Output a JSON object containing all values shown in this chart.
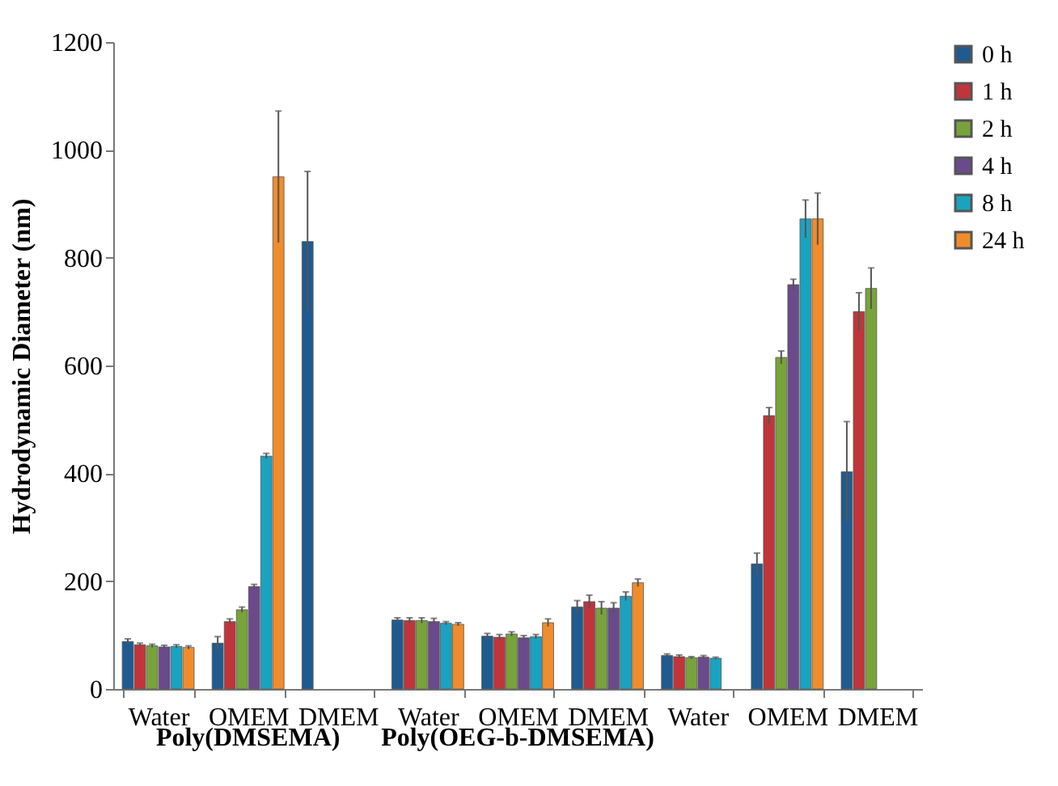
{
  "chart_data": {
    "type": "bar",
    "ylabel": "Hydrodynamic Diameter (nm)",
    "categories": [
      "Water",
      "OMEM",
      "DMEM",
      "Water",
      "OMEM",
      "DMEM",
      "Water",
      "OMEM",
      "DMEM"
    ],
    "ylim": [
      0,
      1200
    ],
    "yticks": [
      0,
      200,
      400,
      600,
      800,
      1000,
      1200
    ],
    "grid": false,
    "legend": "right",
    "annotations": [
      "Poly(DMSEMA)",
      "Poly(OEG-b-DMSEMA)"
    ],
    "series": [
      {
        "name": "0 h",
        "color": "#1f5b8f",
        "values": [
          88,
          85,
          830,
          128,
          98,
          152,
          62,
          232,
          403
        ],
        "errors": [
          5,
          12,
          130,
          4,
          5,
          12,
          3,
          20,
          93
        ]
      },
      {
        "name": "1 h",
        "color": "#c0353a",
        "values": [
          82,
          125,
          null,
          127,
          96,
          162,
          60,
          507,
          700
        ],
        "errors": [
          3,
          5,
          null,
          5,
          5,
          12,
          3,
          15,
          35
        ]
      },
      {
        "name": "2 h",
        "color": "#78a33a",
        "values": [
          80,
          147,
          null,
          127,
          102,
          150,
          58,
          615,
          743
        ],
        "errors": [
          3,
          5,
          null,
          5,
          4,
          12,
          2,
          12,
          38
        ]
      },
      {
        "name": "4 h",
        "color": "#6b4a8c",
        "values": [
          78,
          190,
          null,
          125,
          95,
          150,
          59,
          750,
          null
        ],
        "errors": [
          3,
          4,
          null,
          6,
          4,
          10,
          3,
          10,
          null
        ]
      },
      {
        "name": "8 h",
        "color": "#1aa3c0",
        "values": [
          79,
          432,
          null,
          122,
          97,
          172,
          57,
          872,
          null
        ],
        "errors": [
          3,
          5,
          null,
          3,
          4,
          8,
          2,
          35,
          null
        ]
      },
      {
        "name": "24 h",
        "color": "#f08c2c",
        "values": [
          77,
          950,
          null,
          120,
          123,
          197,
          null,
          872,
          null
        ],
        "errors": [
          3,
          122,
          null,
          3,
          7,
          7,
          null,
          48,
          null
        ]
      }
    ]
  }
}
